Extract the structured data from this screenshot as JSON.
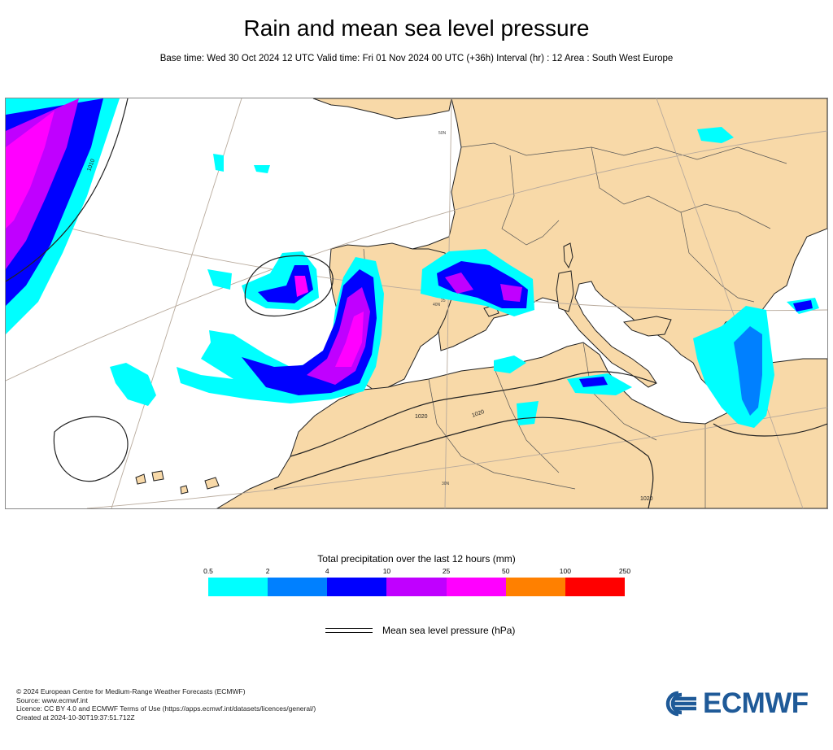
{
  "title": "Rain and mean sea level pressure",
  "subtitle": "Base time: Wed 30 Oct 2024 12 UTC Valid time: Fri 01 Nov 2024 00 UTC (+36h) Interval (hr) : 12 Area : South West Europe",
  "map": {
    "colors": {
      "land": "#f8d9a8",
      "sea": "#ffffff",
      "graticule": "#b8aa9c",
      "border": "#555555",
      "coast": "#222222",
      "isobar": "#222222"
    },
    "isobar_labels": [
      "1010",
      "1020",
      "1020",
      "1020"
    ],
    "graticule_labels": [
      "50N",
      "40N",
      "25",
      "30N"
    ]
  },
  "legend": {
    "title": "Total precipitation over the last 12 hours (mm)",
    "ticks": [
      "0.5",
      "2",
      "4",
      "10",
      "25",
      "50",
      "100",
      "250"
    ],
    "colors": [
      "#00ffff",
      "#0080ff",
      "#0000ff",
      "#c000ff",
      "#ff00ff",
      "#ff8000",
      "#ff0000"
    ],
    "mslp_label": "Mean sea level pressure (hPa)"
  },
  "footer": {
    "line1": "© 2024 European Centre for Medium-Range Weather Forecasts (ECMWF)",
    "line2": "Source: www.ecmwf.int",
    "line3": "Licence: CC BY 4.0 and ECMWF Terms of Use (https://apps.ecmwf.int/datasets/licences/general/)",
    "line4": "Created at 2024-10-30T19:37:51.712Z"
  },
  "logo": {
    "text": "ECMWF",
    "color": "#1f5a98"
  }
}
